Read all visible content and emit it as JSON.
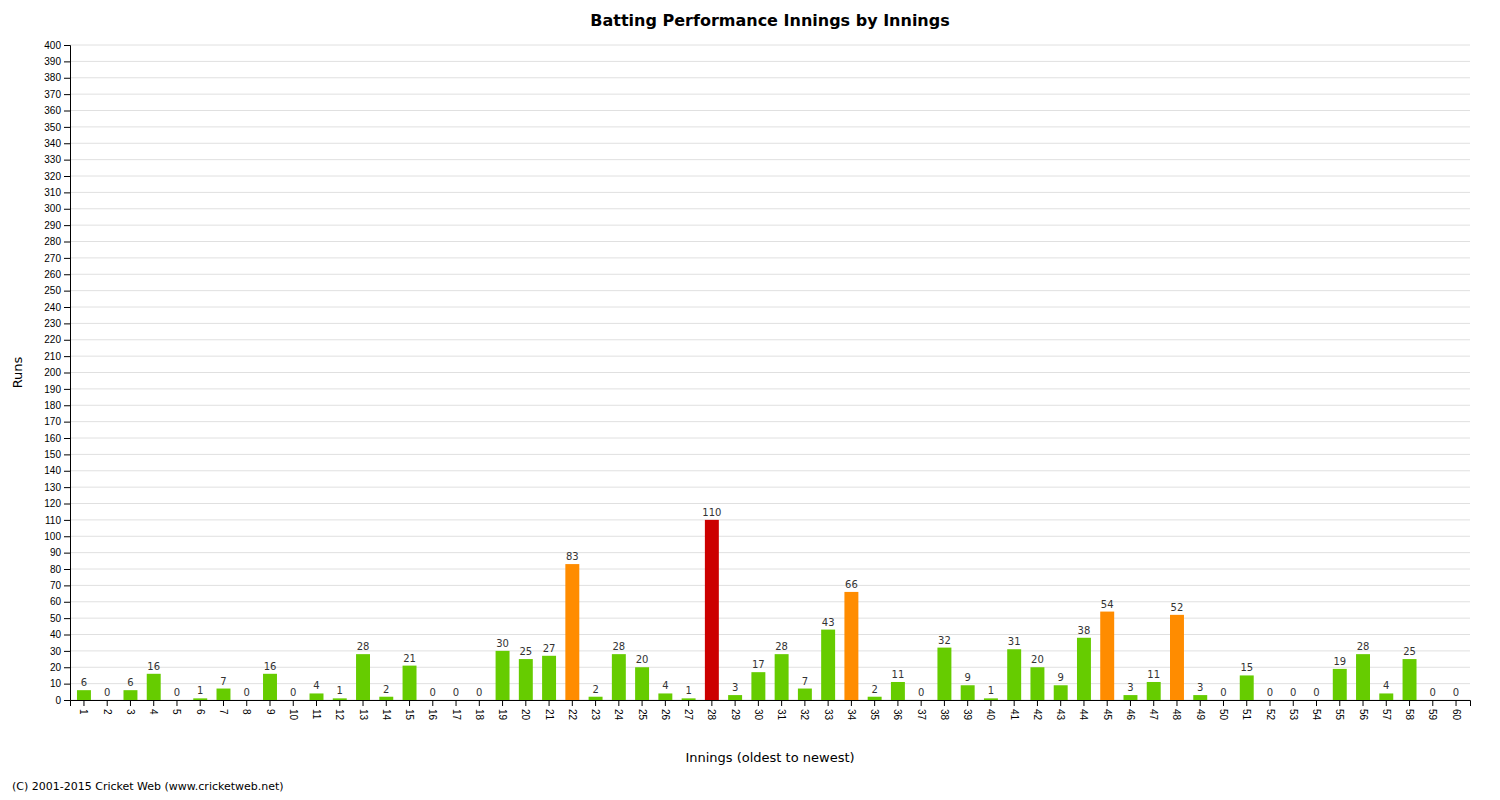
{
  "chart_data": {
    "type": "bar",
    "title": "Batting Performance Innings by Innings",
    "x_label": "Innings (oldest to newest)",
    "y_label": "Runs",
    "categories": [
      "1",
      "2",
      "3",
      "4",
      "5",
      "6",
      "7",
      "8",
      "9",
      "10",
      "11",
      "12",
      "13",
      "14",
      "15",
      "16",
      "17",
      "18",
      "19",
      "20",
      "21",
      "22",
      "23",
      "24",
      "25",
      "26",
      "27",
      "28",
      "29",
      "30",
      "31",
      "32",
      "33",
      "34",
      "35",
      "36",
      "37",
      "38",
      "39",
      "40",
      "41",
      "42",
      "43",
      "44",
      "45",
      "46",
      "47",
      "48",
      "49",
      "50",
      "51",
      "52",
      "53",
      "54",
      "55",
      "56",
      "57",
      "58",
      "59",
      "60"
    ],
    "values": [
      6,
      0,
      6,
      16,
      0,
      1,
      7,
      0,
      16,
      0,
      4,
      1,
      28,
      2,
      21,
      0,
      0,
      0,
      30,
      25,
      27,
      83,
      2,
      28,
      20,
      4,
      1,
      110,
      3,
      17,
      28,
      7,
      43,
      66,
      2,
      11,
      0,
      32,
      9,
      1,
      31,
      20,
      9,
      38,
      54,
      3,
      11,
      52,
      3,
      0,
      15,
      0,
      0,
      0,
      19,
      28,
      4,
      25,
      0,
      0
    ],
    "colors": [
      "#66cc00",
      "#66cc00",
      "#66cc00",
      "#66cc00",
      "#66cc00",
      "#66cc00",
      "#66cc00",
      "#66cc00",
      "#66cc00",
      "#66cc00",
      "#66cc00",
      "#66cc00",
      "#66cc00",
      "#66cc00",
      "#66cc00",
      "#66cc00",
      "#66cc00",
      "#66cc00",
      "#66cc00",
      "#66cc00",
      "#66cc00",
      "#ff8c00",
      "#66cc00",
      "#66cc00",
      "#66cc00",
      "#66cc00",
      "#66cc00",
      "#cc0000",
      "#66cc00",
      "#66cc00",
      "#66cc00",
      "#66cc00",
      "#66cc00",
      "#ff8c00",
      "#66cc00",
      "#66cc00",
      "#66cc00",
      "#66cc00",
      "#66cc00",
      "#66cc00",
      "#66cc00",
      "#66cc00",
      "#66cc00",
      "#66cc00",
      "#ff8c00",
      "#66cc00",
      "#66cc00",
      "#ff8c00",
      "#66cc00",
      "#66cc00",
      "#66cc00",
      "#66cc00",
      "#66cc00",
      "#66cc00",
      "#66cc00",
      "#66cc00",
      "#66cc00",
      "#66cc00",
      "#66cc00",
      "#66cc00"
    ],
    "ylim": [
      0,
      400
    ],
    "yticks": [
      0,
      10,
      20,
      30,
      40,
      50,
      60,
      70,
      80,
      90,
      100,
      110,
      120,
      130,
      140,
      150,
      160,
      170,
      180,
      190,
      200,
      210,
      220,
      230,
      240,
      250,
      260,
      270,
      280,
      290,
      300,
      310,
      320,
      330,
      340,
      350,
      360,
      370,
      380,
      390,
      400
    ],
    "grid": true,
    "data_labels": true,
    "annotations": [
      "(C) 2001-2015 Cricket Web (www.cricketweb.net)"
    ]
  }
}
